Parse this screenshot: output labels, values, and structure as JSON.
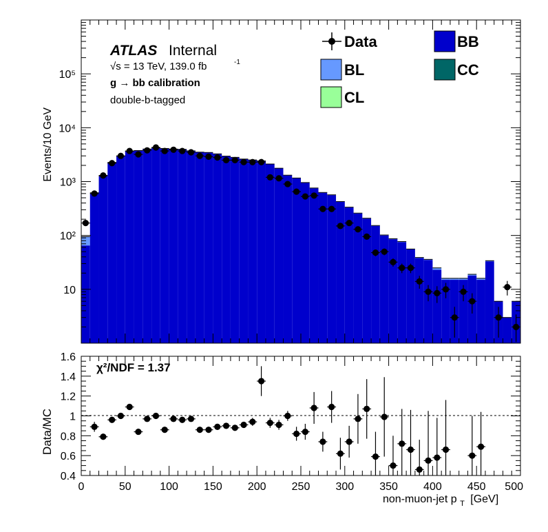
{
  "colors": {
    "BB": "#0000cc",
    "BL": "#6699ff",
    "CL": "#99ff99",
    "CC": "#006666",
    "data": "#000000"
  },
  "header": {
    "atlas": "ATLAS",
    "internal": "Internal",
    "energy": "√s = 13 TeV, 139.0 fb",
    "energy_sup": "-1",
    "selection": "g  → bb calibration",
    "tag": "double-b-tagged"
  },
  "legend": {
    "data": "Data",
    "bb": "BB",
    "bl": "BL",
    "cc": "CC",
    "cl": "CL"
  },
  "ratio": {
    "chi2": "χ²/NDF = 1.37"
  },
  "chart_data": [
    {
      "type": "histogram",
      "scale": "log",
      "ylabel": "Events/10 GeV",
      "xlim": [
        0,
        500
      ],
      "ylim": [
        1,
        1000000
      ],
      "y_tick_labels": [
        "10",
        "10²",
        "10³",
        "10⁴",
        "10⁵"
      ],
      "bin_width": 10,
      "stack_BB": [
        65,
        600,
        1250,
        2250,
        2950,
        3650,
        3750,
        4000,
        4200,
        4100,
        4000,
        3950,
        3700,
        3500,
        3450,
        3250,
        2950,
        2800,
        2600,
        2500,
        2400,
        2100,
        1750,
        1300,
        1150,
        950,
        750,
        620,
        560,
        420,
        330,
        255,
        205,
        150,
        100,
        85,
        75,
        55,
        38,
        35,
        23,
        15,
        15,
        15,
        18,
        15,
        33,
        6,
        3,
        6
      ],
      "stack_BL": [
        30,
        20,
        20,
        20,
        20,
        20,
        20,
        20,
        20,
        20,
        20,
        20,
        20,
        20,
        20,
        20,
        20,
        20,
        20,
        20,
        20,
        20,
        20,
        15,
        15,
        10,
        10,
        8,
        8,
        6,
        5,
        5,
        4,
        3,
        2,
        2,
        2,
        1,
        1,
        1,
        2,
        1,
        1,
        1,
        1,
        1,
        1,
        0,
        0,
        0
      ],
      "data_x": [
        5,
        15,
        25,
        35,
        45,
        55,
        65,
        75,
        85,
        95,
        105,
        115,
        125,
        135,
        145,
        155,
        165,
        175,
        185,
        195,
        205,
        215,
        225,
        235,
        245,
        255,
        265,
        275,
        285,
        295,
        305,
        315,
        325,
        335,
        345,
        355,
        365,
        375,
        385,
        395,
        405,
        415,
        425,
        435,
        445,
        455,
        465,
        475,
        485,
        495
      ],
      "data_y": [
        170,
        600,
        1300,
        2200,
        3000,
        3700,
        3200,
        3800,
        4300,
        3700,
        3900,
        3700,
        3500,
        3000,
        2900,
        2800,
        2500,
        2500,
        2300,
        2300,
        2300,
        1200,
        1150,
        900,
        650,
        530,
        550,
        310,
        310,
        150,
        170,
        130,
        95,
        48,
        50,
        32,
        25,
        25,
        14,
        9,
        8.5,
        10,
        3,
        9,
        6,
        0,
        0,
        3,
        11,
        2
      ]
    },
    {
      "type": "scatter",
      "ylabel": "Data/MC",
      "xlabel": "non-muon-jet p",
      "xlabel_sub": "T",
      "xlabel_unit": "[GeV]",
      "xlim": [
        0,
        500
      ],
      "ylim": [
        0.4,
        1.6
      ],
      "x_ticks": [
        0,
        50,
        100,
        150,
        200,
        250,
        300,
        350,
        400,
        450,
        500
      ],
      "y_ticks": [
        0.4,
        0.6,
        0.8,
        1,
        1.2,
        1.4,
        1.6
      ],
      "reference_line": 1,
      "x": [
        15,
        25,
        35,
        45,
        55,
        65,
        75,
        85,
        95,
        105,
        115,
        125,
        135,
        145,
        155,
        165,
        175,
        185,
        195,
        205,
        215,
        225,
        235,
        245,
        255,
        265,
        275,
        285,
        295,
        305,
        315,
        325,
        335,
        345,
        355,
        365,
        375,
        385,
        395,
        405,
        415,
        445,
        455
      ],
      "y": [
        0.89,
        0.79,
        0.96,
        1.0,
        1.09,
        0.84,
        0.97,
        1.0,
        0.86,
        0.97,
        0.96,
        0.97,
        0.86,
        0.86,
        0.89,
        0.9,
        0.88,
        0.91,
        0.94,
        1.35,
        0.93,
        0.91,
        1.0,
        0.82,
        0.84,
        1.08,
        0.74,
        1.09,
        0.62,
        0.74,
        0.97,
        1.07,
        0.59,
        0.99,
        0.5,
        0.72,
        0.66,
        0.46,
        0.55,
        0.58,
        0.66,
        0.6,
        0.69
      ],
      "err": [
        0.05,
        0.03,
        0.03,
        0.03,
        0.03,
        0.03,
        0.03,
        0.03,
        0.03,
        0.03,
        0.03,
        0.03,
        0.03,
        0.03,
        0.03,
        0.03,
        0.03,
        0.03,
        0.04,
        0.15,
        0.05,
        0.05,
        0.05,
        0.07,
        0.08,
        0.16,
        0.1,
        0.16,
        0.16,
        0.16,
        0.25,
        0.3,
        0.25,
        0.4,
        0.3,
        0.35,
        0.4,
        0.3,
        0.5,
        0.4,
        0.5,
        0.4,
        0.35
      ]
    }
  ]
}
